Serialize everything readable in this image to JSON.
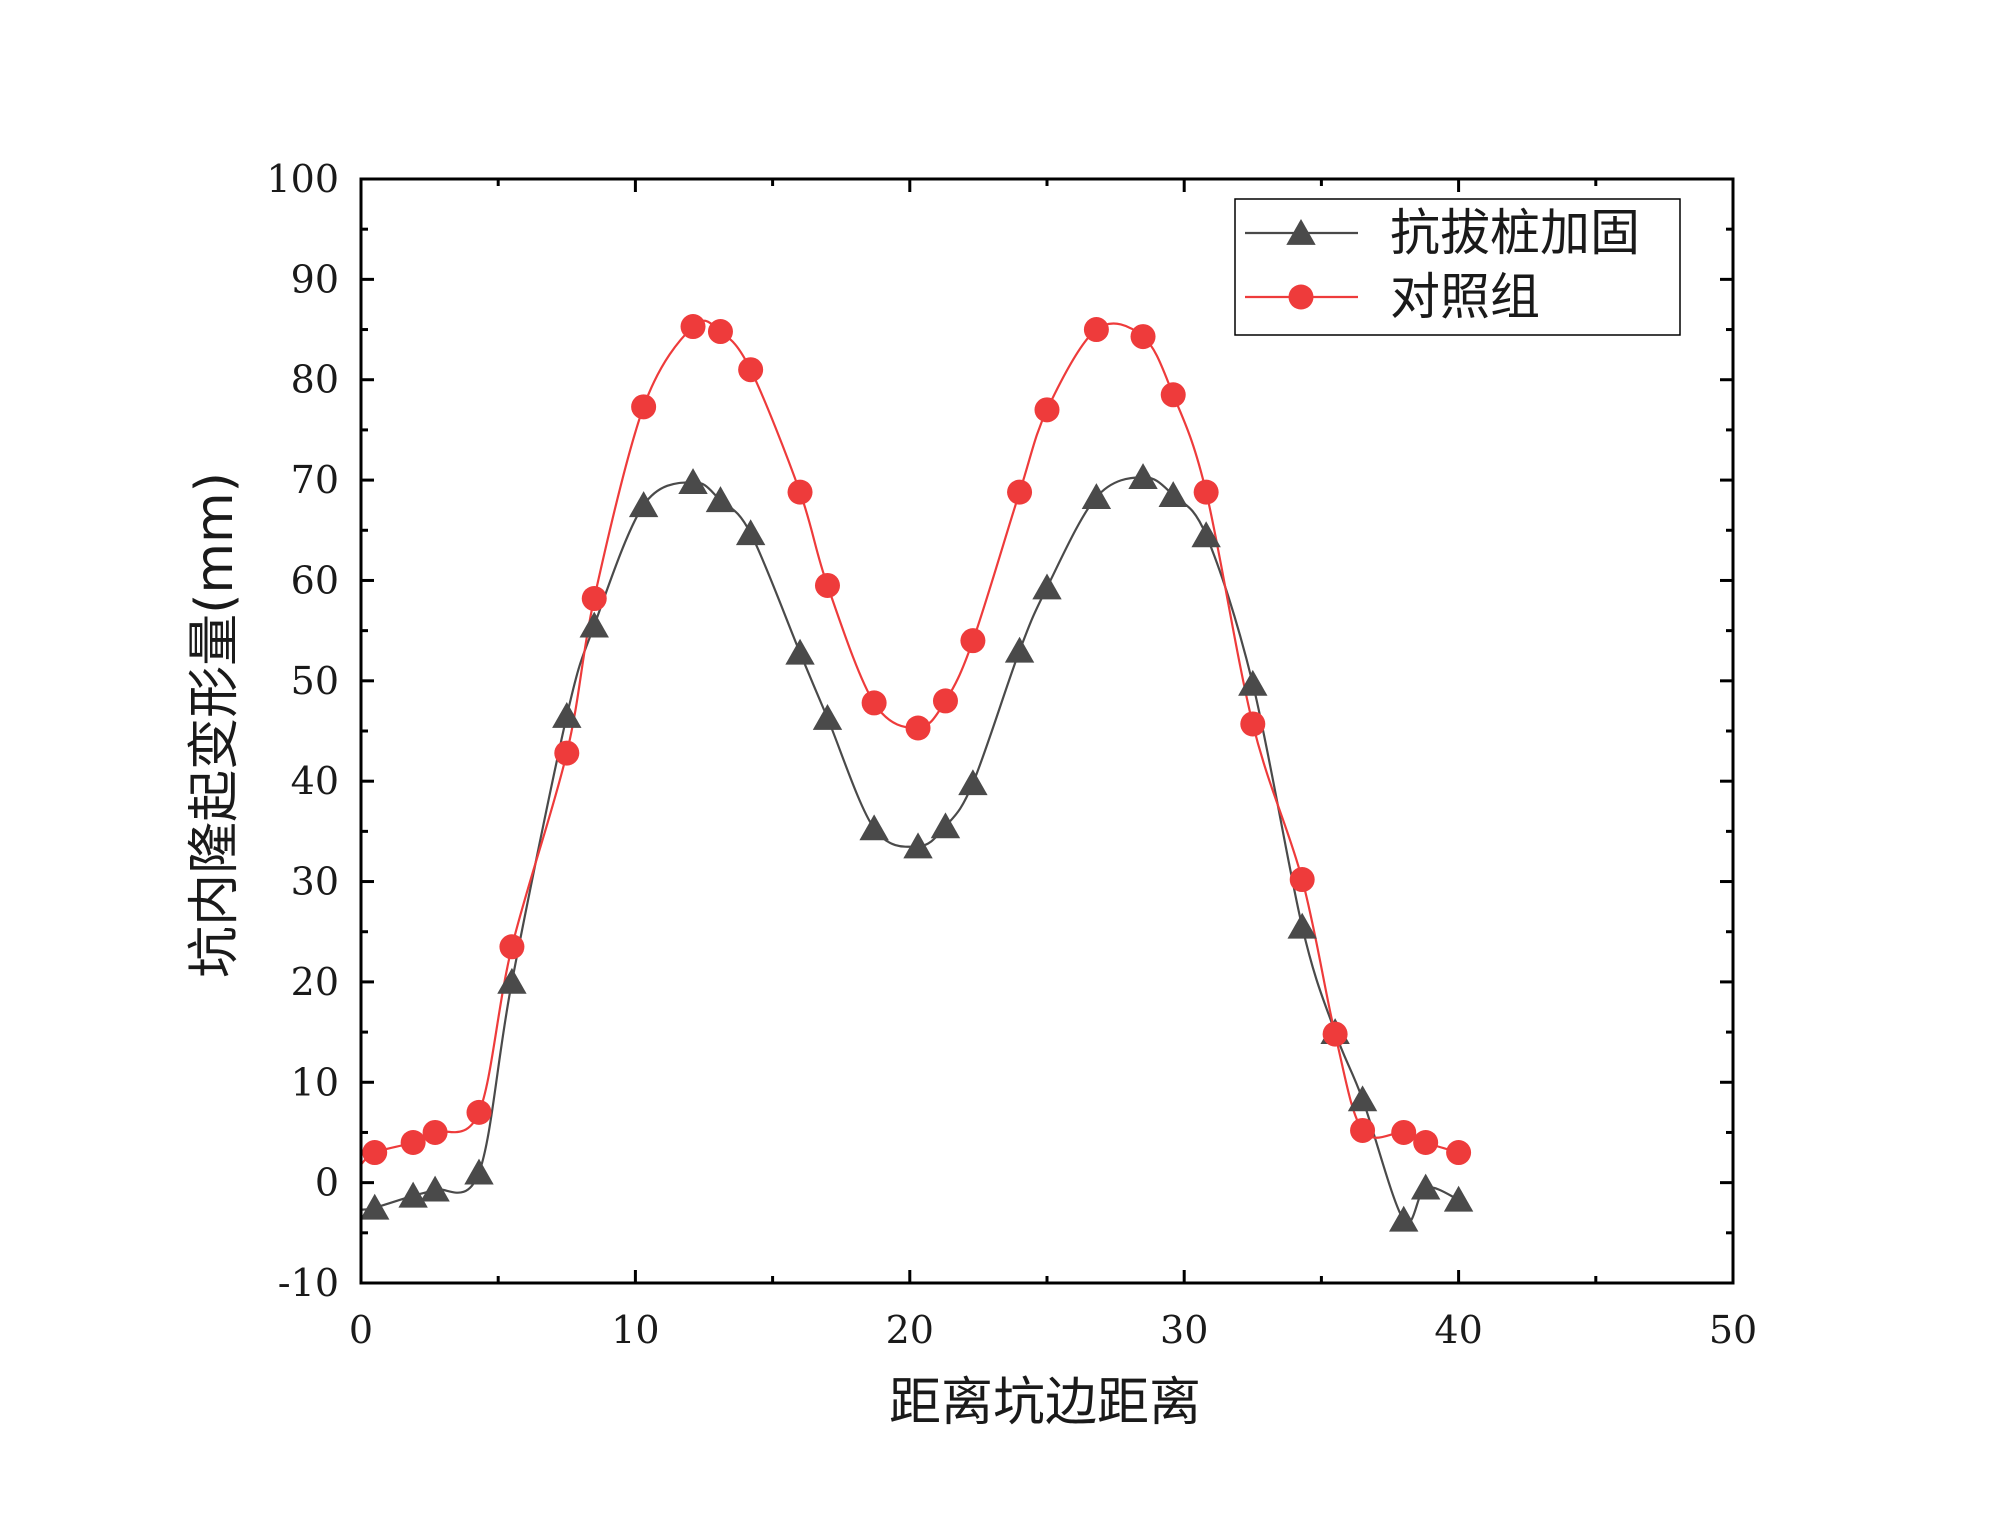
{
  "chart_data": {
    "type": "line",
    "xlabel": "距离坑边距离",
    "ylabel": "坑内隆起变形量(mm)",
    "xlim": [
      0,
      50
    ],
    "ylim": [
      -10,
      100
    ],
    "xticks": [
      0,
      10,
      20,
      30,
      40,
      50
    ],
    "yticks": [
      -10,
      0,
      10,
      20,
      30,
      40,
      50,
      60,
      70,
      80,
      90,
      100
    ],
    "grid": false,
    "legend_position": "top-right",
    "series": [
      {
        "name": "抗拔桩加固",
        "color": "#4a4a4a",
        "marker": "triangle",
        "x": [
          0.5,
          1.9,
          2.7,
          4.3,
          5.5,
          7.5,
          8.5,
          10.3,
          12.1,
          13.1,
          14.2,
          16.0,
          17.0,
          18.7,
          20.3,
          21.3,
          22.3,
          24.0,
          25.0,
          26.8,
          28.5,
          29.6,
          30.8,
          32.5,
          34.3,
          35.5,
          36.5,
          38.0,
          38.8,
          40.0
        ],
        "y": [
          -2.5,
          -1.3,
          -0.7,
          1.0,
          20.0,
          46.5,
          55.5,
          67.5,
          69.8,
          68.0,
          64.7,
          52.8,
          46.3,
          35.3,
          33.5,
          35.5,
          39.8,
          53.0,
          59.3,
          68.3,
          70.3,
          68.5,
          64.5,
          49.7,
          25.5,
          15.0,
          8.3,
          -3.7,
          -0.5,
          -1.7
        ]
      },
      {
        "name": "对照组",
        "color": "#ee3b3b",
        "marker": "circle",
        "x": [
          0.5,
          1.9,
          2.7,
          4.3,
          5.5,
          7.5,
          8.5,
          10.3,
          12.1,
          13.1,
          14.2,
          16.0,
          17.0,
          18.7,
          20.3,
          21.3,
          22.3,
          24.0,
          25.0,
          26.8,
          28.5,
          29.6,
          30.8,
          32.5,
          34.3,
          35.5,
          36.5,
          38.0,
          38.8,
          40.0
        ],
        "y": [
          3.0,
          4.0,
          5.0,
          7.0,
          23.5,
          42.8,
          58.2,
          77.3,
          85.3,
          84.8,
          81.0,
          68.8,
          59.5,
          47.8,
          45.3,
          48.0,
          54.0,
          68.8,
          77.0,
          85.0,
          84.3,
          78.5,
          68.8,
          45.7,
          30.2,
          14.8,
          5.2,
          5.0,
          4.0,
          3.0
        ]
      }
    ]
  }
}
